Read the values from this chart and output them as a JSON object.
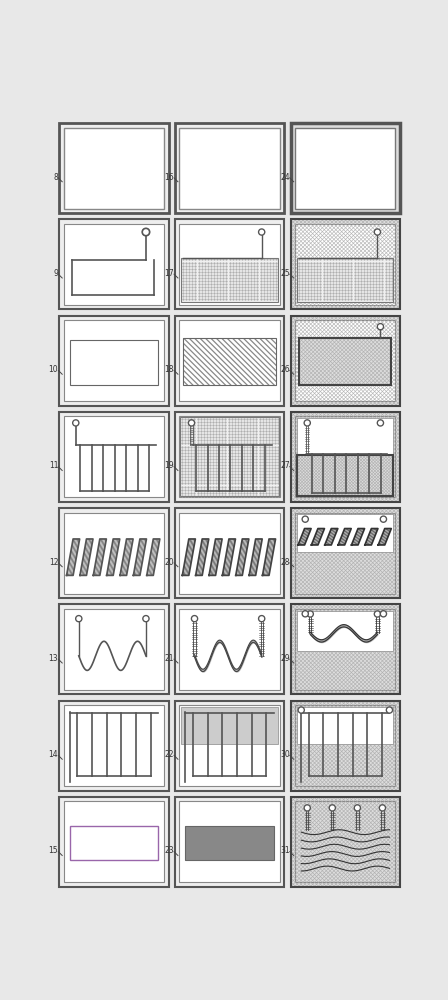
{
  "bg_color": "#e8e8e8",
  "cell_bg": "#ffffff",
  "border_outer_color": "#555555",
  "border_inner_color": "#888888",
  "grid_rows": 8,
  "grid_cols": 3,
  "labels": [
    [
      "8",
      "9",
      "10",
      "11",
      "12",
      "13",
      "14",
      "15"
    ],
    [
      "16",
      "17",
      "18",
      "19",
      "20",
      "21",
      "22",
      "23"
    ],
    [
      "24",
      "25",
      "26",
      "27",
      "28",
      "29",
      "30",
      "31"
    ]
  ],
  "cross_hatch_color": "#aaaaaa",
  "diag_hatch_color": "#999999",
  "dot_hatch_color": "#bbbbbb"
}
